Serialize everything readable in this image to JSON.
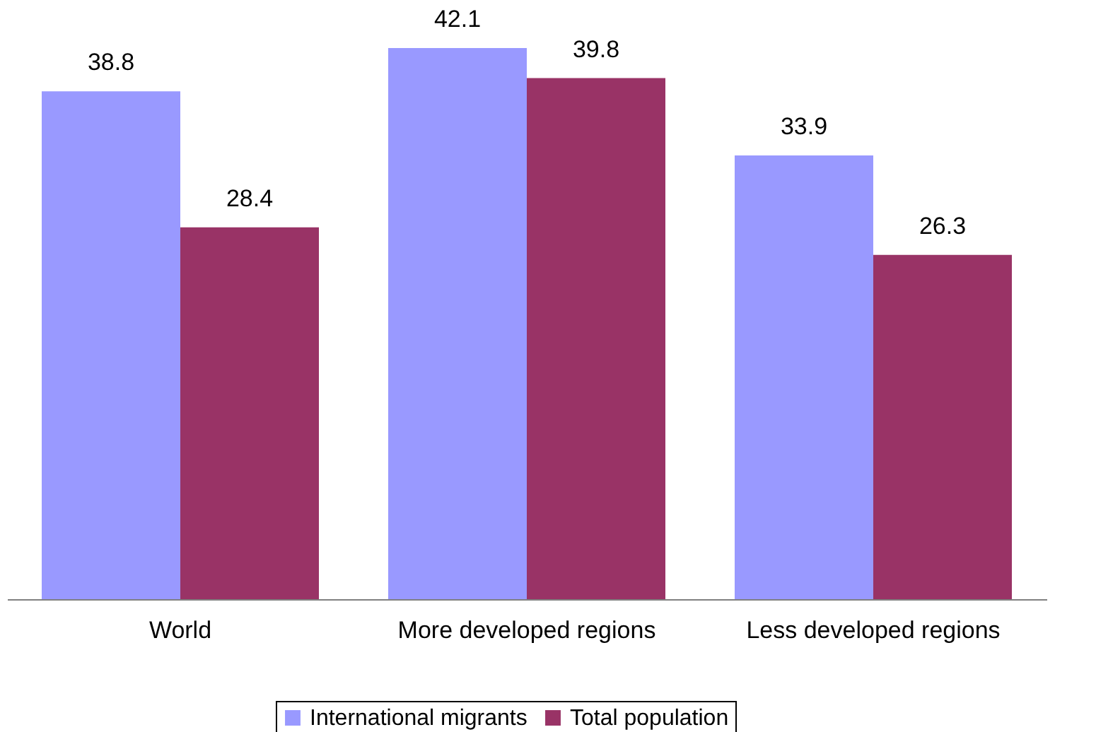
{
  "chart_data": {
    "type": "bar",
    "categories": [
      "World",
      "More developed regions",
      "Less developed regions"
    ],
    "series": [
      {
        "name": "International migrants",
        "color": "#9999ff",
        "values": [
          38.8,
          42.1,
          33.9
        ]
      },
      {
        "name": "Total population",
        "color": "#993366",
        "values": [
          28.4,
          39.8,
          26.3
        ]
      }
    ],
    "data_labels": true,
    "legend": "bottom",
    "grid": false,
    "tick_labels": "x"
  }
}
